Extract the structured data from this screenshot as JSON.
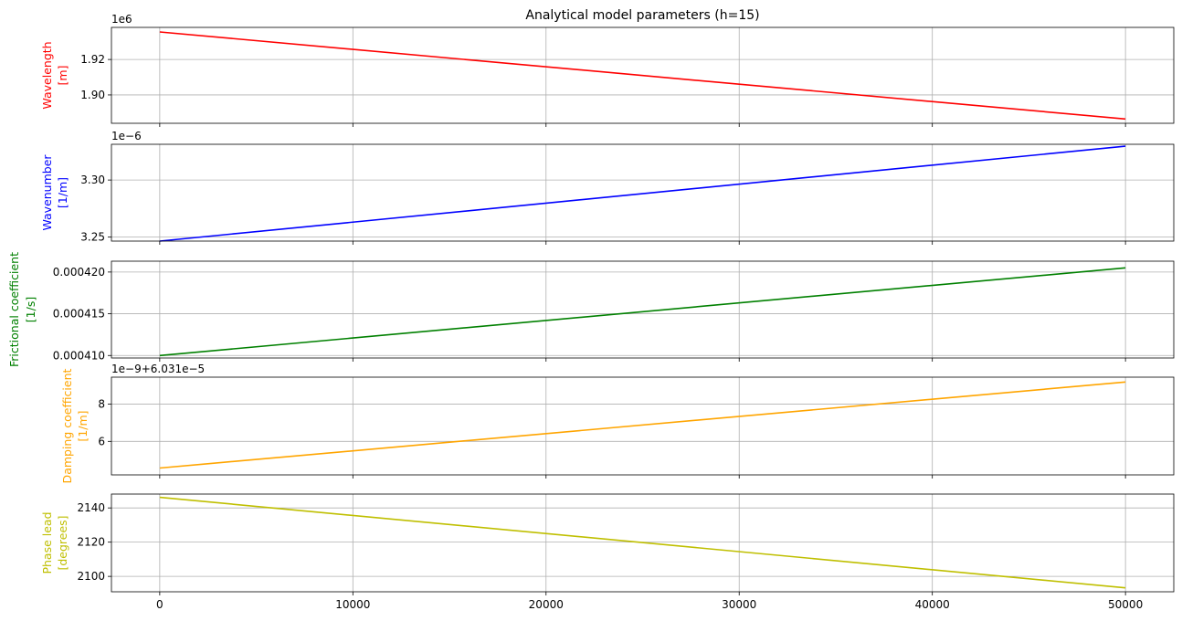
{
  "chart_data": {
    "title": "Analytical model parameters (h=15)",
    "type": "line",
    "shared_x": {
      "xlim": [
        -2500,
        52500
      ],
      "ticks": [
        0,
        10000,
        20000,
        30000,
        40000,
        50000
      ],
      "tick_labels": [
        "0",
        "10000",
        "20000",
        "30000",
        "40000",
        "50000"
      ],
      "grid": true
    },
    "panels": [
      {
        "id": "wavelength",
        "ylabel": "Wavelength\n[m]",
        "color": "#ff0000",
        "offset_text": "1e6",
        "ylim": [
          1.884,
          1.9381
        ],
        "yticks": [
          1.9,
          1.92
        ],
        "ytick_labels": [
          "1.90",
          "1.92"
        ],
        "x": [
          0,
          50000
        ],
        "y": [
          1.9355,
          1.8864
        ]
      },
      {
        "id": "wavenumber",
        "ylabel": "Wavenumber\n[1/m]",
        "color": "#0000ff",
        "offset_text": "1e−6",
        "ylim": [
          3.2465,
          3.3313
        ],
        "yticks": [
          3.25,
          3.3
        ],
        "ytick_labels": [
          "3.25",
          "3.30"
        ],
        "x": [
          0,
          50000
        ],
        "y": [
          3.2465,
          3.3296
        ]
      },
      {
        "id": "frictional",
        "ylabel": "Frictional coefficient\n[1/s]",
        "color": "#008000",
        "offset_text": "",
        "ylim": [
          0.0004097,
          0.0004213
        ],
        "yticks": [
          0.00041,
          0.000415,
          0.00042
        ],
        "ytick_labels": [
          "0.000410",
          "0.000415",
          "0.000420"
        ],
        "x": [
          0,
          50000
        ],
        "y": [
          0.00041,
          0.0004205
        ]
      },
      {
        "id": "damping",
        "ylabel": "Damping coefficient\n[1/m]",
        "color": "#ffa500",
        "offset_text": "1e−9+6.031e−5",
        "ylim": [
          4.2,
          9.45
        ],
        "yticks": [
          6,
          8
        ],
        "ytick_labels": [
          "6",
          "8"
        ],
        "x": [
          0,
          50000
        ],
        "y": [
          4.57,
          9.19
        ]
      },
      {
        "id": "phase",
        "ylabel": "Phase lead\n[degrees]",
        "color": "#bfbf00",
        "offset_text": "",
        "ylim": [
          2091.0,
          2148.1
        ],
        "yticks": [
          2100,
          2120,
          2140
        ],
        "ytick_labels": [
          "2100",
          "2120",
          "2140"
        ],
        "x": [
          0,
          50000
        ],
        "y": [
          2146.2,
          2093.3
        ]
      }
    ]
  }
}
